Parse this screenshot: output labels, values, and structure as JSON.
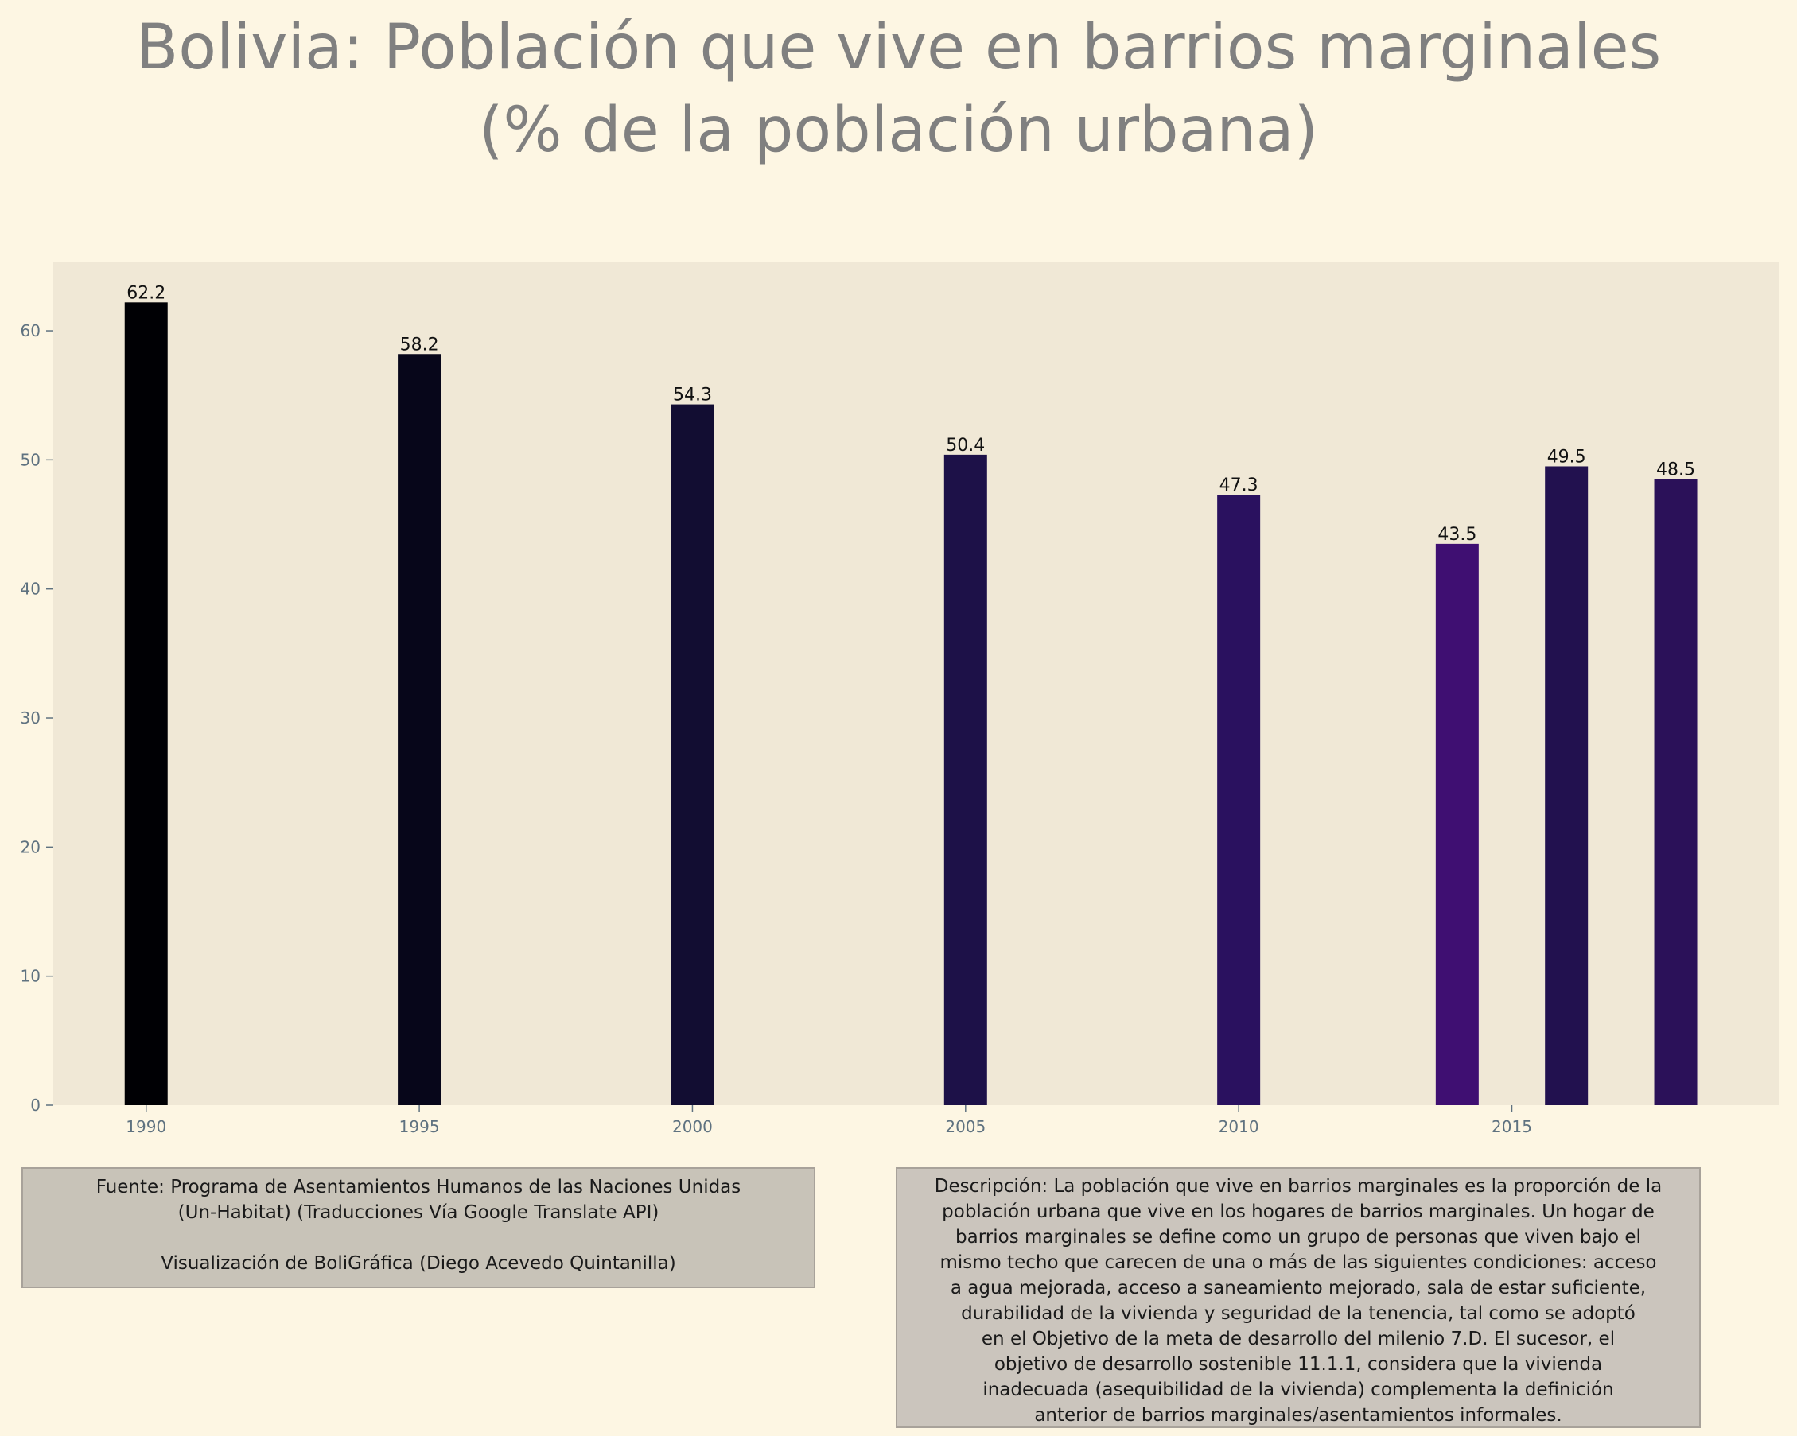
{
  "title_line1": "Bolivia:  Población que vive en barrios marginales",
  "title_line2": "(% de la población urbana)",
  "colors": {
    "background": "#fdf6e3",
    "plot_background": "#f0e8d6",
    "title": "#808080",
    "tick": "#5f7280"
  },
  "chart_data": {
    "type": "bar",
    "x": [
      1990,
      1995,
      2000,
      2005,
      2010,
      2014,
      2016,
      2018
    ],
    "values": [
      62.2,
      58.2,
      54.3,
      50.4,
      47.3,
      43.5,
      49.5,
      48.5
    ],
    "data_labels": [
      "62.2",
      "58.2",
      "54.3",
      "50.4",
      "47.3",
      "43.5",
      "49.5",
      "48.5"
    ],
    "bar_colors": [
      "#000004",
      "#07061a",
      "#120d32",
      "#1d1148",
      "#2a115f",
      "#3f0f72",
      "#22114f",
      "#2b1159"
    ],
    "xticks": [
      1990,
      1995,
      2000,
      2005,
      2010,
      2015
    ],
    "yticks": [
      0,
      10,
      20,
      30,
      40,
      50,
      60
    ],
    "xlim": [
      1988.3,
      2019.9
    ],
    "ylim": [
      0,
      65.3
    ],
    "grid": false,
    "xlabel": "",
    "ylabel": ""
  },
  "source": {
    "line1": "Fuente: Programa de Asentamientos Humanos de las Naciones Unidas",
    "line2": "(Un-Habitat) (Traducciones Vía Google Translate API)",
    "line3": "Visualización de BoliGráfica (Diego Acevedo Quintanilla)"
  },
  "description": [
    "Descripción: La población que vive en barrios marginales es la proporción de la",
    "población urbana que vive en los hogares de barrios marginales. Un hogar de",
    "barrios marginales se define como un grupo de personas que viven bajo el",
    "mismo techo que carecen de una o más de las siguientes condiciones: acceso",
    "a agua mejorada, acceso a saneamiento mejorado, sala de estar suficiente,",
    "durabilidad de la vivienda y seguridad de la tenencia, tal como se adoptó",
    "en el Objetivo de la meta de desarrollo del milenio 7.D. El sucesor, el",
    "objetivo de desarrollo sostenible 11.1.1, considera que la vivienda",
    "inadecuada (asequibilidad de la vivienda) complementa la definición",
    "anterior de barrios marginales/asentamientos informales."
  ]
}
